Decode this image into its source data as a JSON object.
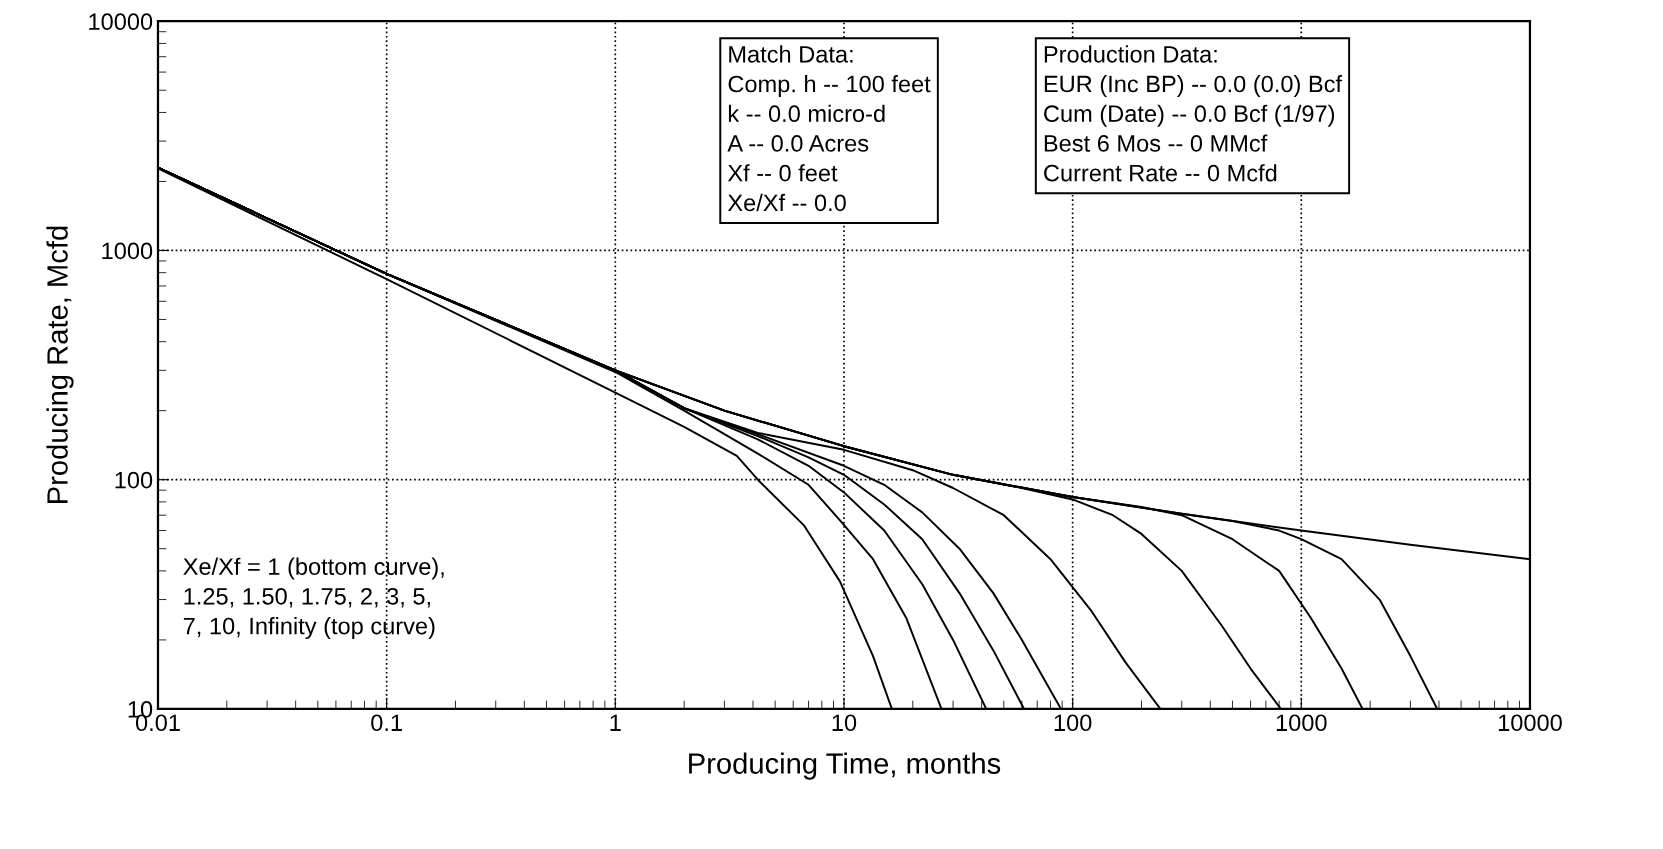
{
  "chart_data": {
    "type": "line",
    "xlabel": "Producing Time, months",
    "ylabel": "Producing Rate, Mcfd",
    "log": "xy",
    "grid": true,
    "legend": false,
    "marker": "none",
    "line_style": "solid",
    "xlim": [
      0.01,
      10000
    ],
    "ylim": [
      10,
      10000
    ],
    "xticks": [
      {
        "value": 0.01,
        "label": "0.01"
      },
      {
        "value": 0.1,
        "label": "0.1"
      },
      1,
      10,
      100,
      1000,
      10000
    ],
    "yticks": [
      10,
      100,
      1000,
      10000
    ],
    "annotations": [
      "Match Data:\nComp. h -- 100 feet\nk -- 0.0 micro-d\nA -- 0.0 Acres\nXf -- 0 feet\nXe/Xf -- 0.0",
      "Production Data:\nEUR (Inc BP) -- 0.0 (0.0) Bcf\nCum (Date) -- 0.0 Bcf (1/97)\nBest 6 Mos -- 0 MMcf\nCurrent Rate -- 0 Mcfd",
      "Xe/Xf = 1 (bottom curve),\n1.25, 1.50, 1.75, 2, 3, 5,\n7, 10, Infinity (top curve)"
    ],
    "series": [
      {
        "color": "#000000",
        "x": [
          0.01,
          0.1,
          1,
          2,
          3.4,
          4.2,
          6.7,
          9.6,
          13.4,
          16.2
        ],
        "values": [
          2280,
          750,
          240,
          170,
          127,
          100,
          63,
          36,
          17,
          10
        ]
      },
      {
        "color": "#000000",
        "x": [
          0.01,
          0.1,
          1,
          2,
          4.2,
          7,
          9.8,
          13.4,
          18.7,
          26.7
        ],
        "values": [
          2300,
          790,
          295,
          200,
          130,
          95,
          65,
          45,
          25,
          10
        ]
      },
      {
        "color": "#000000",
        "x": [
          0.01,
          0.1,
          1,
          2,
          4.2,
          7,
          10,
          15,
          22,
          30,
          41.9
        ],
        "values": [
          2300,
          790,
          300,
          205,
          150,
          115,
          88,
          60,
          35,
          20,
          10
        ]
      },
      {
        "color": "#000000",
        "x": [
          0.01,
          0.1,
          1,
          2,
          4.2,
          7,
          10,
          15,
          22,
          32,
          45,
          61.3
        ],
        "values": [
          2300,
          790,
          300,
          205,
          155,
          125,
          105,
          78,
          55,
          32,
          18,
          10
        ]
      },
      {
        "color": "#000000",
        "x": [
          0.01,
          0.1,
          1,
          2,
          4.2,
          10,
          15,
          22,
          32,
          45,
          60,
          88.9
        ],
        "values": [
          2300,
          790,
          300,
          205,
          158,
          115,
          95,
          72,
          50,
          32,
          20,
          10
        ]
      },
      {
        "color": "#000000",
        "x": [
          0.01,
          0.1,
          1,
          2,
          4.2,
          10,
          20,
          30,
          50,
          80,
          120,
          170,
          242
        ],
        "values": [
          2300,
          790,
          300,
          205,
          160,
          135,
          110,
          92,
          70,
          45,
          27,
          16,
          10
        ]
      },
      {
        "color": "#000000",
        "x": [
          0.01,
          0.1,
          1,
          3,
          10,
          30,
          60,
          100,
          150,
          200,
          300,
          450,
          600,
          814
        ],
        "values": [
          2300,
          790,
          300,
          200,
          140,
          105,
          92,
          82,
          70,
          58,
          40,
          23,
          15,
          10
        ]
      },
      {
        "color": "#000000",
        "x": [
          0.01,
          0.1,
          1,
          3,
          10,
          30,
          100,
          200,
          300,
          500,
          800,
          1100,
          1500,
          1853
        ],
        "values": [
          2300,
          790,
          300,
          200,
          140,
          105,
          84,
          76,
          70,
          55,
          40,
          25,
          15,
          10
        ]
      },
      {
        "color": "#000000",
        "x": [
          0.01,
          0.1,
          1,
          3,
          10,
          30,
          100,
          300,
          500,
          800,
          1000,
          1500,
          2200,
          3000,
          3930
        ],
        "values": [
          2300,
          790,
          300,
          200,
          140,
          105,
          84,
          71,
          66,
          60,
          55,
          45,
          30,
          17,
          10
        ]
      },
      {
        "color": "#000000",
        "x": [
          0.01,
          0.1,
          1,
          3,
          10,
          30,
          100,
          300,
          1000,
          3000,
          10000
        ],
        "values": [
          2300,
          790,
          300,
          200,
          140,
          105,
          84,
          71,
          60,
          52,
          45
        ]
      }
    ]
  }
}
